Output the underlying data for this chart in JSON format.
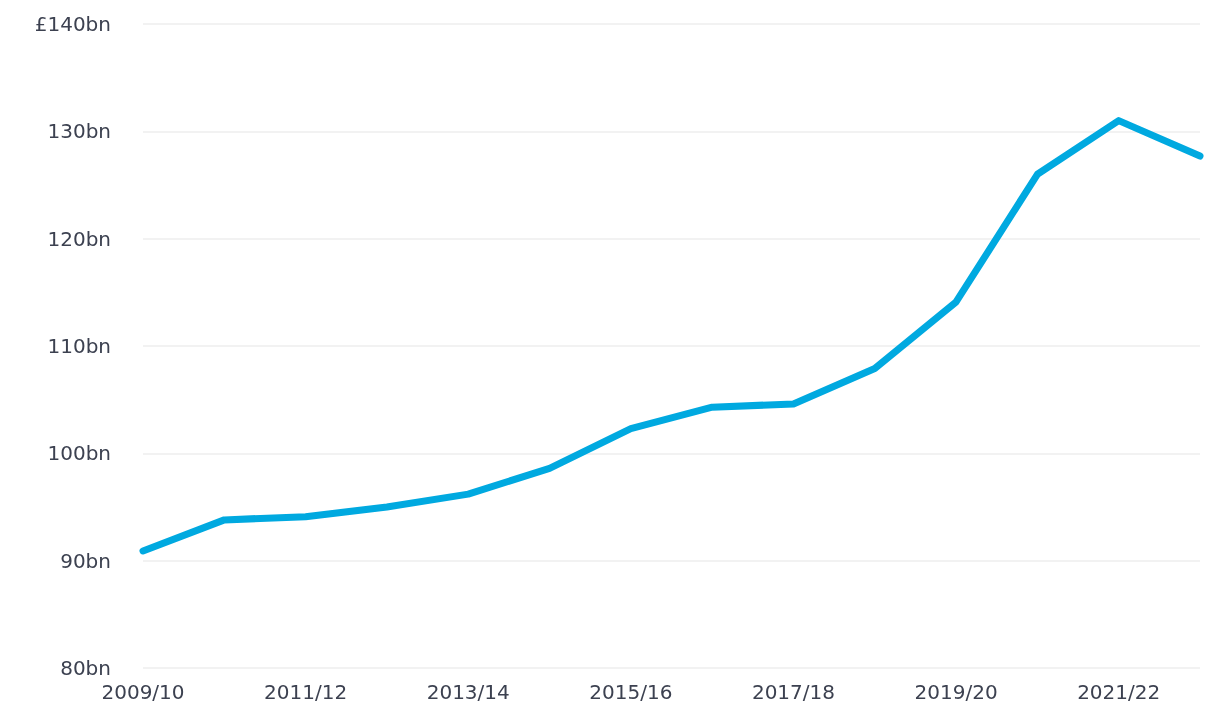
{
  "chart_data": {
    "type": "line",
    "categories": [
      "2009/10",
      null,
      "2011/12",
      null,
      "2013/14",
      null,
      "2015/16",
      null,
      "2017/18",
      null,
      "2019/20",
      null,
      "2021/22",
      null
    ],
    "series": [
      {
        "color": "#00a9e0",
        "values": [
          90.9,
          93.8,
          94.1,
          95.0,
          96.2,
          98.6,
          102.3,
          104.3,
          104.6,
          107.9,
          114.1,
          126.0,
          131.0,
          127.7
        ]
      }
    ],
    "ylim": [
      80,
      140
    ],
    "yticks": [
      {
        "value": 80,
        "label": "80bn"
      },
      {
        "value": 90,
        "label": "90bn"
      },
      {
        "value": 100,
        "label": "100bn"
      },
      {
        "value": 110,
        "label": "110bn"
      },
      {
        "value": 120,
        "label": "120bn"
      },
      {
        "value": 130,
        "label": "130bn"
      },
      {
        "value": 140,
        "label": "£140bn"
      }
    ],
    "grid": "y",
    "marker": "none",
    "line_style": "solid"
  }
}
